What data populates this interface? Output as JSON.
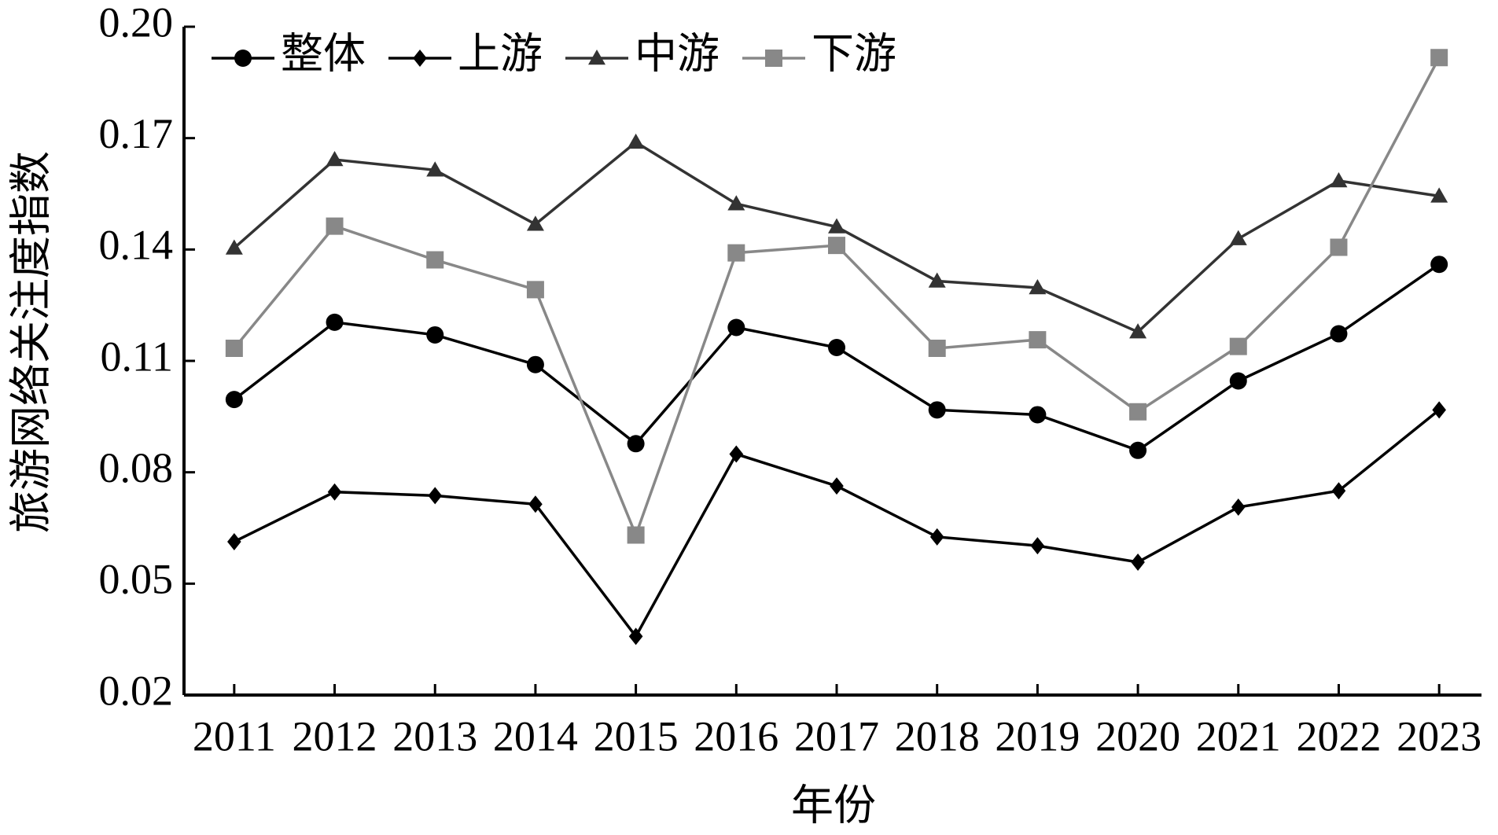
{
  "chart_data": {
    "type": "line",
    "x_label": "年份",
    "y_label": "旅游网络关注度指数",
    "categories": [
      "2011",
      "2012",
      "2013",
      "2014",
      "2015",
      "2016",
      "2017",
      "2018",
      "2019",
      "2020",
      "2021",
      "2022",
      "2023"
    ],
    "series": [
      {
        "name": "整体",
        "color": "#000000",
        "marker": "circle",
        "values": [
          0.0996,
          0.1204,
          0.117,
          0.109,
          0.0877,
          0.119,
          0.1136,
          0.0968,
          0.0955,
          0.0859,
          0.1046,
          0.1173,
          0.136
        ]
      },
      {
        "name": "上游",
        "color": "#000000",
        "marker": "diamond",
        "values": [
          0.0613,
          0.0747,
          0.0737,
          0.0714,
          0.0358,
          0.0849,
          0.0763,
          0.0626,
          0.0602,
          0.0558,
          0.0706,
          0.075,
          0.0968
        ]
      },
      {
        "name": "中游",
        "color": "#333333",
        "marker": "triangle",
        "values": [
          0.1404,
          0.1642,
          0.1614,
          0.1468,
          0.1689,
          0.1523,
          0.1461,
          0.1315,
          0.1297,
          0.1178,
          0.1429,
          0.1585,
          0.1544
        ]
      },
      {
        "name": "下游",
        "color": "#888888",
        "marker": "square",
        "values": [
          0.1134,
          0.1463,
          0.1372,
          0.1292,
          0.0631,
          0.1391,
          0.1411,
          0.1134,
          0.1157,
          0.0963,
          0.1139,
          0.1406,
          0.1917
        ]
      }
    ],
    "ylim": [
      0.02,
      0.2
    ],
    "yticks": [
      0.02,
      0.05,
      0.08,
      0.11,
      0.14,
      0.17,
      {
        "value": 0.2,
        "label": "0.20"
      }
    ],
    "grid": false,
    "legend": "top-left"
  }
}
